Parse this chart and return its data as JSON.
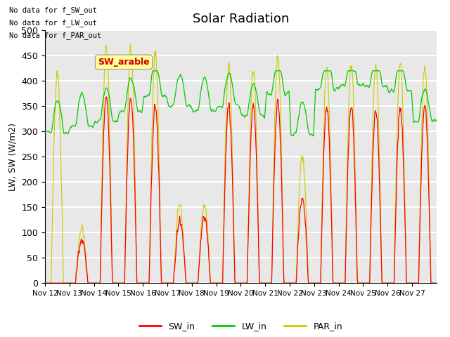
{
  "title": "Solar Radiation",
  "ylabel": "LW, SW (W/m2)",
  "ylim": [
    0,
    500
  ],
  "plot_bg_color": "#e8e8e8",
  "grid_color": "white",
  "text_annotations": [
    "No data for f_SW_out",
    "No data for f_LW_out",
    "No data for f_PAR_out"
  ],
  "box_label": "SW_arable",
  "box_color": "#ffff99",
  "box_text_color": "#cc0000",
  "sw_color": "#ff0000",
  "lw_color": "#00cc00",
  "par_color": "#cccc00",
  "legend_labels": [
    "SW_in",
    "LW_in",
    "PAR_in"
  ],
  "x_tick_labels": [
    "Nov 12",
    "Nov 13",
    "Nov 14",
    "Nov 15",
    "Nov 16",
    "Nov 17",
    "Nov 18",
    "Nov 19",
    "Nov 20",
    "Nov 21",
    "Nov 22",
    "Nov 23",
    "Nov 24",
    "Nov 25",
    "Nov 26",
    "Nov 27"
  ],
  "x_tick_positions": [
    0,
    1,
    2,
    3,
    4,
    5,
    6,
    7,
    8,
    9,
    10,
    11,
    12,
    13,
    14,
    15
  ],
  "n_days": 16,
  "samples_per_day": 48,
  "day_sw_peaks": [
    0,
    85,
    370,
    370,
    350,
    120,
    130,
    350,
    350,
    360,
    165,
    350,
    350,
    340,
    345,
    350
  ],
  "day_par_peaks": [
    415,
    110,
    470,
    465,
    455,
    155,
    155,
    430,
    425,
    445,
    250,
    425,
    430,
    430,
    435,
    430
  ],
  "day_lw_base": [
    298,
    310,
    320,
    340,
    370,
    350,
    340,
    350,
    330,
    375,
    295,
    385,
    390,
    390,
    380,
    320
  ]
}
